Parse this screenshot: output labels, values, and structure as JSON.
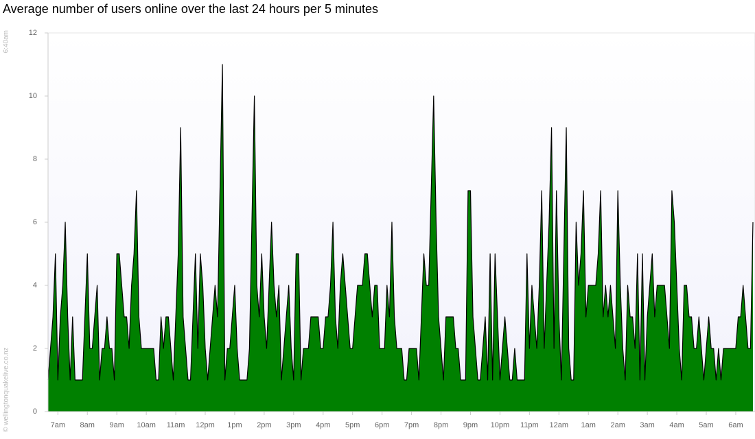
{
  "chart_data": {
    "type": "area",
    "title": "Average number of users online over the last 24 hours per 5 minutes",
    "annotations": [
      "6:40am",
      "© wellingtonquakelive.co.nz"
    ],
    "color": "#008000",
    "line_color": "#000000",
    "values": [
      1,
      2,
      3,
      5,
      1,
      3,
      4,
      6,
      3,
      1,
      3,
      1,
      1,
      1,
      1,
      3,
      5,
      2,
      2,
      3,
      4,
      1,
      2,
      2,
      3,
      2,
      2,
      1,
      5,
      5,
      4,
      3,
      3,
      2,
      4,
      5,
      7,
      3,
      2,
      2,
      2,
      2,
      2,
      2,
      1,
      1,
      3,
      2,
      3,
      3,
      2,
      1,
      3,
      5,
      9,
      3,
      2,
      1,
      1,
      3,
      5,
      2,
      5,
      4,
      2,
      1,
      2,
      3,
      4,
      3,
      7,
      11,
      1,
      2,
      2,
      3,
      4,
      2,
      1,
      1,
      1,
      1,
      2,
      6,
      10,
      4,
      3,
      5,
      3,
      2,
      4,
      6,
      4,
      3,
      4,
      1,
      2,
      3,
      4,
      2,
      1,
      5,
      5,
      1,
      2,
      2,
      2,
      3,
      3,
      3,
      3,
      2,
      2,
      3,
      3,
      4,
      6,
      3,
      2,
      4,
      5,
      4,
      3,
      2,
      2,
      3,
      4,
      4,
      4,
      5,
      5,
      4,
      3,
      4,
      4,
      2,
      2,
      2,
      4,
      3,
      6,
      3,
      2,
      2,
      2,
      1,
      1,
      2,
      2,
      2,
      2,
      1,
      3,
      5,
      4,
      4,
      7,
      10,
      6,
      3,
      2,
      1,
      3,
      3,
      3,
      3,
      2,
      2,
      1,
      1,
      1,
      7,
      7,
      3,
      2,
      1,
      1,
      2,
      3,
      1,
      5,
      1,
      5,
      3,
      1,
      2,
      3,
      2,
      1,
      1,
      2,
      1,
      1,
      1,
      1,
      5,
      2,
      4,
      3,
      2,
      4,
      7,
      2,
      4,
      6,
      9,
      2,
      7,
      3,
      1,
      5,
      9,
      2,
      1,
      1,
      6,
      4,
      5,
      7,
      3,
      4,
      4,
      4,
      4,
      5,
      7,
      3,
      4,
      3,
      4,
      3,
      2,
      7,
      4,
      2,
      1,
      4,
      3,
      3,
      2,
      5,
      1,
      5,
      1,
      3,
      4,
      5,
      3,
      4,
      4,
      4,
      4,
      3,
      2,
      7,
      6,
      4,
      2,
      1,
      4,
      4,
      3,
      3,
      2,
      2,
      3,
      2,
      1,
      2,
      3,
      2,
      2,
      1,
      2,
      1,
      2,
      2,
      2,
      2,
      2,
      2,
      3,
      3,
      4,
      3,
      2,
      2,
      6
    ],
    "xlim": [
      0,
      287
    ],
    "xticks": [
      {
        "value": 4,
        "label": "7am"
      },
      {
        "value": 16,
        "label": "8am"
      },
      {
        "value": 28,
        "label": "9am"
      },
      {
        "value": 40,
        "label": "10am"
      },
      {
        "value": 52,
        "label": "11am"
      },
      {
        "value": 64,
        "label": "12pm"
      },
      {
        "value": 76,
        "label": "1pm"
      },
      {
        "value": 88,
        "label": "2pm"
      },
      {
        "value": 100,
        "label": "3pm"
      },
      {
        "value": 112,
        "label": "4pm"
      },
      {
        "value": 124,
        "label": "5pm"
      },
      {
        "value": 136,
        "label": "6pm"
      },
      {
        "value": 148,
        "label": "7pm"
      },
      {
        "value": 160,
        "label": "8pm"
      },
      {
        "value": 172,
        "label": "9pm"
      },
      {
        "value": 184,
        "label": "10pm"
      },
      {
        "value": 196,
        "label": "11pm"
      },
      {
        "value": 208,
        "label": "12am"
      },
      {
        "value": 220,
        "label": "1am"
      },
      {
        "value": 232,
        "label": "2am"
      },
      {
        "value": 244,
        "label": "3am"
      },
      {
        "value": 256,
        "label": "4am"
      },
      {
        "value": 268,
        "label": "5am"
      },
      {
        "value": 280,
        "label": "6am"
      }
    ],
    "ylim": [
      0,
      12
    ],
    "yticks": [
      0,
      2,
      4,
      6,
      8,
      10,
      12
    ],
    "grid": false
  }
}
